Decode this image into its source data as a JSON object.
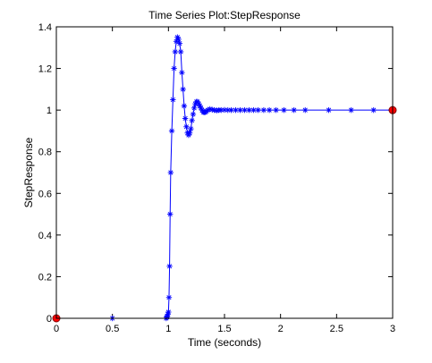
{
  "chart_data": {
    "type": "line",
    "title": "Time Series Plot:StepResponse",
    "xlabel": "Time (seconds)",
    "ylabel": "StepResponse",
    "xlim": [
      0,
      3
    ],
    "ylim": [
      0,
      1.4
    ],
    "grid": false,
    "x_ticks": [
      {
        "value": 0,
        "label": "0"
      },
      {
        "value": 0.5,
        "label": "0.5"
      },
      {
        "value": 1,
        "label": "1"
      },
      {
        "value": 1.5,
        "label": "1.5"
      },
      {
        "value": 2,
        "label": "2"
      },
      {
        "value": 2.5,
        "label": "2.5"
      },
      {
        "value": 3,
        "label": "3"
      }
    ],
    "y_ticks": [
      {
        "value": 0,
        "label": "0"
      },
      {
        "value": 0.2,
        "label": "0.2"
      },
      {
        "value": 0.4,
        "label": "0.4"
      },
      {
        "value": 0.6,
        "label": "0.6"
      },
      {
        "value": 0.8,
        "label": "0.8"
      },
      {
        "value": 1,
        "label": "1"
      },
      {
        "value": 1.2,
        "label": "1.2"
      },
      {
        "value": 1.4,
        "label": "1.4"
      }
    ],
    "series": [
      {
        "line_color": "#0000ff",
        "marker": "asterisk",
        "x": [
          0,
          0.5,
          0.98,
          0.985,
          0.99,
          0.995,
          1.0,
          1.005,
          1.01,
          1.015,
          1.02,
          1.03,
          1.04,
          1.05,
          1.06,
          1.07,
          1.08,
          1.09,
          1.1,
          1.11,
          1.12,
          1.13,
          1.14,
          1.15,
          1.16,
          1.17,
          1.18,
          1.19,
          1.2,
          1.21,
          1.22,
          1.23,
          1.24,
          1.25,
          1.26,
          1.27,
          1.28,
          1.29,
          1.3,
          1.31,
          1.32,
          1.33,
          1.34,
          1.35,
          1.37,
          1.39,
          1.41,
          1.43,
          1.45,
          1.47,
          1.5,
          1.53,
          1.56,
          1.6,
          1.64,
          1.68,
          1.72,
          1.76,
          1.8,
          1.85,
          1.9,
          1.96,
          2.03,
          2.12,
          2.22,
          2.43,
          2.63,
          2.83,
          3.0
        ],
        "y": [
          0,
          0,
          0,
          0.005,
          0.01,
          0.02,
          0.03,
          0.1,
          0.25,
          0.5,
          0.7,
          0.9,
          1.05,
          1.2,
          1.28,
          1.33,
          1.35,
          1.34,
          1.32,
          1.28,
          1.18,
          1.1,
          1.02,
          0.96,
          0.92,
          0.89,
          0.88,
          0.89,
          0.91,
          0.95,
          0.98,
          1.01,
          1.03,
          1.04,
          1.04,
          1.03,
          1.02,
          1.01,
          1.0,
          0.99,
          0.99,
          0.99,
          0.995,
          1.0,
          1.005,
          1.002,
          1.0,
          0.998,
          1.0,
          1.0,
          1.001,
          1.0,
          1.0,
          1.0,
          1.0,
          1.0,
          1.0,
          1.0,
          1.0,
          1.0,
          1.0,
          1.0,
          1.0,
          1.0,
          1.0,
          1.0,
          1.0,
          1.0,
          1.0
        ]
      }
    ],
    "endpoints": {
      "color": "#ff0000",
      "edge_color": "#800000",
      "points": [
        {
          "x": 0,
          "y": 0
        },
        {
          "x": 3,
          "y": 1
        }
      ]
    }
  }
}
